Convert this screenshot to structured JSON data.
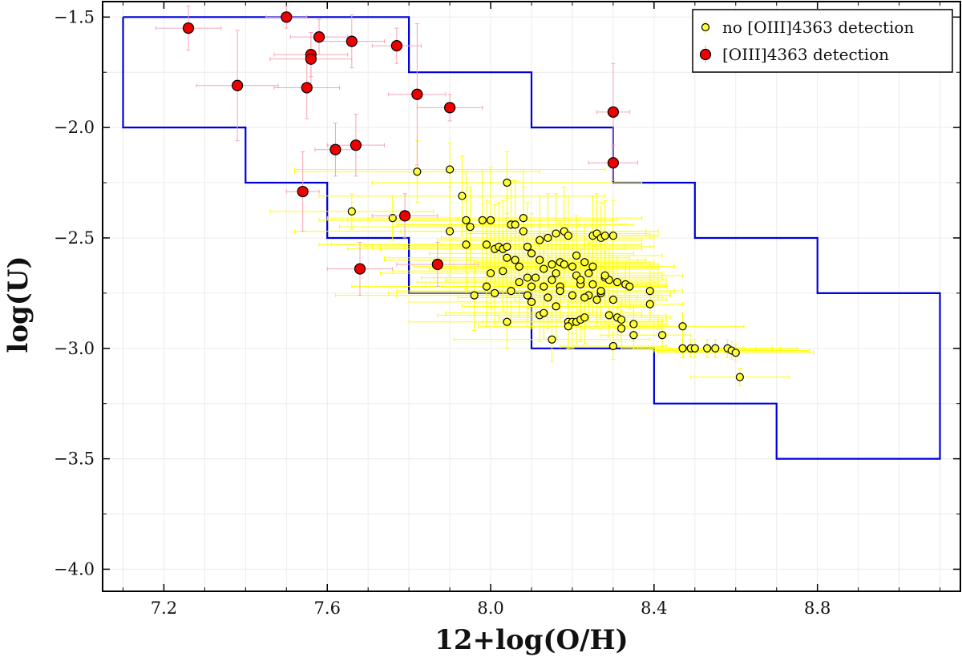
{
  "chart_data": {
    "type": "scatter",
    "title": "",
    "xlabel": "12+log(O/H)",
    "ylabel": "log(U)",
    "xlim": [
      7.05,
      9.15
    ],
    "ylim": [
      -4.1,
      -1.43
    ],
    "xticks": [
      7.2,
      7.6,
      8.0,
      8.4,
      8.8
    ],
    "xtick_labels": [
      "7.2",
      "7.6",
      "8.0",
      "8.4",
      "8.8"
    ],
    "yticks": [
      -1.5,
      -2.0,
      -2.5,
      -3.0,
      -3.5,
      -4.0
    ],
    "ytick_labels": [
      "−1.5",
      "−2.0",
      "−2.5",
      "−3.0",
      "−3.5",
      "−4.0"
    ],
    "grid": true,
    "legend_position": "top-right",
    "colors": {
      "no_detection_fill": "#ffff33",
      "no_detection_err": "#ffff00",
      "detection_fill": "#ee0000",
      "detection_err": "#f4a6b4",
      "boundary": "#0000dd"
    },
    "boundary_line": {
      "name": "boundary",
      "x": [
        7.1,
        7.8,
        7.8,
        8.1,
        8.1,
        8.3,
        8.3,
        8.5,
        8.5,
        8.8,
        8.8,
        9.1,
        9.1,
        8.7,
        8.7,
        8.4,
        8.4,
        8.1,
        8.1,
        7.8,
        7.8,
        7.6,
        7.6,
        7.4,
        7.4,
        7.1,
        7.1
      ],
      "y": [
        -1.5,
        -1.5,
        -1.75,
        -1.75,
        -2.0,
        -2.0,
        -2.25,
        -2.25,
        -2.5,
        -2.5,
        -2.75,
        -2.75,
        -3.5,
        -3.5,
        -3.25,
        -3.25,
        -3.0,
        -3.0,
        -2.75,
        -2.75,
        -2.5,
        -2.5,
        -2.25,
        -2.25,
        -2.0,
        -2.0,
        -1.5
      ]
    },
    "series": [
      {
        "name": "no [OIII]4363 detection",
        "marker": "circle-small",
        "x": [
          7.66,
          7.76,
          7.82,
          7.9,
          7.9,
          7.93,
          7.94,
          7.94,
          7.95,
          7.96,
          7.98,
          7.99,
          7.99,
          8.0,
          8.01,
          8.02,
          8.03,
          8.03,
          8.04,
          8.04,
          8.04,
          8.05,
          8.05,
          8.06,
          8.06,
          8.07,
          8.08,
          8.08,
          8.09,
          8.09,
          8.1,
          8.1,
          8.1,
          8.11,
          8.12,
          8.12,
          8.13,
          8.13,
          8.14,
          8.14,
          8.15,
          8.15,
          8.16,
          8.16,
          8.16,
          8.17,
          8.17,
          8.18,
          8.18,
          8.19,
          8.19,
          8.2,
          8.2,
          8.2,
          8.21,
          8.21,
          8.22,
          8.22,
          8.23,
          8.23,
          8.24,
          8.24,
          8.25,
          8.25,
          8.26,
          8.26,
          8.27,
          8.27,
          8.28,
          8.28,
          8.29,
          8.29,
          8.3,
          8.3,
          8.3,
          8.31,
          8.31,
          8.32,
          8.32,
          8.33,
          8.34,
          8.35,
          8.35,
          8.39,
          8.39,
          8.42,
          8.47,
          8.47,
          8.49,
          8.5,
          8.53,
          8.55,
          8.58,
          8.59,
          8.6,
          8.61,
          8.04,
          8.12,
          8.22,
          8.28,
          8.17,
          8.25,
          8.19,
          8.13,
          8.07,
          8.21,
          8.15,
          8.01,
          8.09,
          8.27,
          8.0,
          8.23
        ],
        "y": [
          -2.38,
          -2.41,
          -2.2,
          -2.19,
          -2.47,
          -2.31,
          -2.42,
          -2.53,
          -2.45,
          -2.76,
          -2.42,
          -2.72,
          -2.53,
          -2.42,
          -2.55,
          -2.54,
          -2.55,
          -2.65,
          -2.25,
          -2.54,
          -2.59,
          -2.44,
          -2.74,
          -2.44,
          -2.6,
          -2.63,
          -2.41,
          -2.47,
          -2.54,
          -2.76,
          -2.57,
          -2.72,
          -2.79,
          -2.68,
          -2.51,
          -2.6,
          -2.64,
          -2.72,
          -2.5,
          -2.77,
          -2.69,
          -2.96,
          -2.48,
          -2.66,
          -2.81,
          -2.61,
          -2.72,
          -2.47,
          -2.62,
          -2.49,
          -2.88,
          -2.63,
          -2.76,
          -2.88,
          -2.67,
          -2.88,
          -2.71,
          -2.87,
          -2.61,
          -2.86,
          -2.66,
          -2.76,
          -2.49,
          -2.71,
          -2.48,
          -2.78,
          -2.5,
          -2.75,
          -2.49,
          -2.68,
          -2.69,
          -2.85,
          -2.49,
          -2.78,
          -2.99,
          -2.86,
          -2.7,
          -2.87,
          -2.91,
          -2.71,
          -2.72,
          -2.94,
          -2.89,
          -2.74,
          -2.8,
          -2.94,
          -2.9,
          -3.0,
          -3.0,
          -3.0,
          -3.0,
          -3.0,
          -3.0,
          -3.01,
          -3.02,
          -3.13,
          -2.88,
          -2.85,
          -2.69,
          -2.67,
          -2.74,
          -2.63,
          -2.9,
          -2.84,
          -2.7,
          -2.58,
          -2.62,
          -2.75,
          -2.68,
          -2.74,
          -2.66,
          -2.77
        ],
        "xerr": [
          0.2,
          0.16,
          0.3,
          0.38,
          0.38,
          0.35,
          0.36,
          0.36,
          0.32,
          0.34,
          0.33,
          0.33,
          0.38,
          0.3,
          0.36,
          0.31,
          0.3,
          0.27,
          0.33,
          0.36,
          0.3,
          0.28,
          0.28,
          0.29,
          0.32,
          0.26,
          0.29,
          0.3,
          0.3,
          0.32,
          0.25,
          0.26,
          0.3,
          0.28,
          0.25,
          0.24,
          0.28,
          0.25,
          0.26,
          0.22,
          0.26,
          0.24,
          0.22,
          0.26,
          0.23,
          0.21,
          0.26,
          0.23,
          0.23,
          0.2,
          0.23,
          0.21,
          0.2,
          0.22,
          0.19,
          0.2,
          0.21,
          0.2,
          0.17,
          0.21,
          0.17,
          0.2,
          0.15,
          0.18,
          0.13,
          0.15,
          0.13,
          0.17,
          0.13,
          0.14,
          0.12,
          0.14,
          0.09,
          0.13,
          0.13,
          0.1,
          0.1,
          0.11,
          0.1,
          0.08,
          0.09,
          0.08,
          0.08,
          0.08,
          0.08,
          0.07,
          0.15,
          0.15,
          0.13,
          0.15,
          0.16,
          0.16,
          0.17,
          0.19,
          0.19,
          0.12,
          0.24,
          0.25,
          0.21,
          0.19,
          0.23,
          0.2,
          0.22,
          0.24,
          0.25,
          0.21,
          0.24,
          0.26,
          0.23,
          0.18,
          0.27,
          0.19
        ],
        "yerr": [
          0.08,
          0.1,
          0.14,
          0.12,
          0.2,
          0.18,
          0.22,
          0.2,
          0.18,
          0.16,
          0.22,
          0.18,
          0.2,
          0.24,
          0.2,
          0.2,
          0.22,
          0.18,
          0.14,
          0.22,
          0.18,
          0.2,
          0.16,
          0.2,
          0.18,
          0.16,
          0.22,
          0.2,
          0.2,
          0.14,
          0.18,
          0.18,
          0.12,
          0.16,
          0.2,
          0.18,
          0.16,
          0.16,
          0.2,
          0.14,
          0.16,
          0.1,
          0.18,
          0.16,
          0.14,
          0.18,
          0.14,
          0.2,
          0.16,
          0.18,
          0.12,
          0.16,
          0.14,
          0.12,
          0.14,
          0.1,
          0.14,
          0.1,
          0.16,
          0.12,
          0.14,
          0.12,
          0.18,
          0.14,
          0.18,
          0.12,
          0.16,
          0.12,
          0.16,
          0.12,
          0.14,
          0.1,
          0.16,
          0.12,
          0.06,
          0.1,
          0.12,
          0.1,
          0.08,
          0.1,
          0.1,
          0.06,
          0.08,
          0.1,
          0.08,
          0.06,
          0.06,
          0.04,
          0.04,
          0.04,
          0.04,
          0.04,
          0.04,
          0.04,
          0.04,
          0.04,
          0.12,
          0.12,
          0.14,
          0.14,
          0.14,
          0.14,
          0.1,
          0.12,
          0.16,
          0.18,
          0.16,
          0.14,
          0.14,
          0.12,
          0.16,
          0.12
        ]
      },
      {
        "name": "[OIII]4363 detection",
        "marker": "circle-large",
        "x": [
          7.26,
          7.5,
          7.58,
          7.66,
          7.56,
          7.56,
          7.77,
          7.38,
          7.55,
          7.82,
          7.9,
          8.3,
          7.62,
          7.67,
          8.3,
          7.54,
          7.79,
          7.87,
          7.68
        ],
        "y": [
          -1.55,
          -1.5,
          -1.59,
          -1.61,
          -1.67,
          -1.69,
          -1.63,
          -1.81,
          -1.82,
          -1.85,
          -1.91,
          -1.93,
          -2.1,
          -2.08,
          -2.16,
          -2.29,
          -2.4,
          -2.62,
          -2.64
        ],
        "xerr": [
          0.08,
          0.05,
          0.07,
          0.08,
          0.09,
          0.1,
          0.06,
          0.1,
          0.08,
          0.07,
          0.08,
          0.04,
          0.05,
          0.07,
          0.06,
          0.04,
          0.08,
          0.1,
          0.08
        ],
        "yerr": [
          0.1,
          0.05,
          0.08,
          0.12,
          0.1,
          0.12,
          0.08,
          0.25,
          0.14,
          0.32,
          0.06,
          0.22,
          0.12,
          0.14,
          0.08,
          0.18,
          0.1,
          0.1,
          0.12
        ]
      }
    ]
  }
}
